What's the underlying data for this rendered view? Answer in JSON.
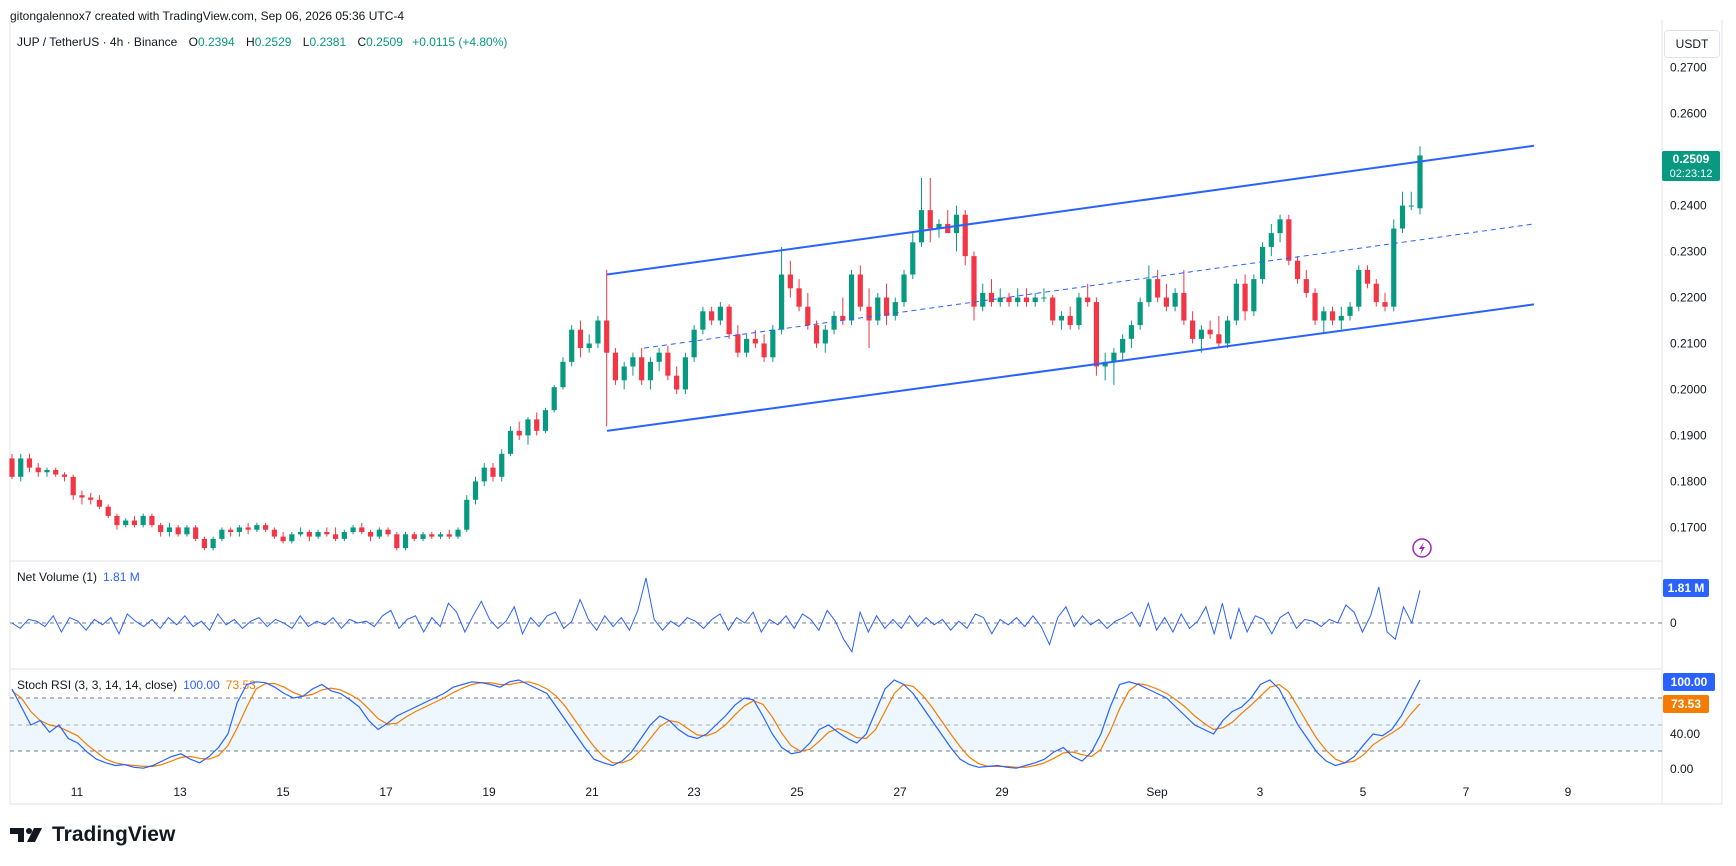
{
  "header": {
    "title": "gitongalennox7 created with TradingView.com, Sep 06, 2026 05:36 UTC-4"
  },
  "symbol": {
    "name": "JUP / TetherUS · 4h · Binance",
    "open_label": "O",
    "open": "0.2394",
    "high_label": "H",
    "high": "0.2529",
    "low_label": "L",
    "low": "0.2381",
    "close_label": "C",
    "close": "0.2509",
    "change": "+0.0115 (+4.80%)"
  },
  "currency": "USDT",
  "price_axis": {
    "ticks": [
      "0.2700",
      "0.2600",
      "0.2500",
      "0.2400",
      "0.2300",
      "0.2200",
      "0.2100",
      "0.2000",
      "0.1900",
      "0.1800",
      "0.1700"
    ],
    "current_price": "0.2509",
    "countdown": "02:23:12"
  },
  "time_axis": {
    "ticks": [
      "11",
      "13",
      "15",
      "17",
      "19",
      "21",
      "23",
      "25",
      "27",
      "29",
      "Sep",
      "3",
      "5",
      "7",
      "9"
    ]
  },
  "net_volume": {
    "label": "Net Volume (1)",
    "value": "1.81 M",
    "axis_value": "1.81 M",
    "zero_label": "0"
  },
  "stoch_rsi": {
    "label": "Stoch RSI (3, 3, 14, 14, close)",
    "k_value": "100.00",
    "d_value": "73.53",
    "axis_k": "100.00",
    "axis_d": "73.53",
    "ticks": [
      "40.00",
      "0.00"
    ]
  },
  "footer": {
    "brand": "TradingView"
  },
  "colors": {
    "up": "#089981",
    "down": "#f23645",
    "channel": "#2962ff",
    "volume_line": "#2962ff",
    "k_line": "#2962ff",
    "d_line": "#f57c00",
    "band_fill": "#e3f2fd"
  },
  "chart_data": {
    "type": "candlestick",
    "ylim": [
      0.164,
      0.276
    ],
    "interval": "4h",
    "ohlc_note": "approximate reading of candles",
    "candles": [
      [
        0.185,
        0.186,
        0.1805,
        0.181
      ],
      [
        0.181,
        0.186,
        0.18,
        0.185
      ],
      [
        0.185,
        0.186,
        0.182,
        0.183
      ],
      [
        0.183,
        0.184,
        0.181,
        0.182
      ],
      [
        0.182,
        0.183,
        0.181,
        0.1825
      ],
      [
        0.1825,
        0.183,
        0.181,
        0.1815
      ],
      [
        0.1815,
        0.182,
        0.18,
        0.181
      ],
      [
        0.181,
        0.1815,
        0.176,
        0.177
      ],
      [
        0.177,
        0.178,
        0.175,
        0.1765
      ],
      [
        0.1765,
        0.1775,
        0.175,
        0.176
      ],
      [
        0.176,
        0.177,
        0.174,
        0.1745
      ],
      [
        0.1745,
        0.175,
        0.172,
        0.1725
      ],
      [
        0.1725,
        0.173,
        0.1695,
        0.1705
      ],
      [
        0.1705,
        0.172,
        0.17,
        0.1715
      ],
      [
        0.1715,
        0.1725,
        0.17,
        0.1705
      ],
      [
        0.1705,
        0.173,
        0.17,
        0.1725
      ],
      [
        0.1725,
        0.173,
        0.17,
        0.1705
      ],
      [
        0.1705,
        0.171,
        0.168,
        0.169
      ],
      [
        0.169,
        0.171,
        0.168,
        0.17
      ],
      [
        0.17,
        0.1705,
        0.168,
        0.1685
      ],
      [
        0.1685,
        0.1705,
        0.168,
        0.17
      ],
      [
        0.17,
        0.1705,
        0.167,
        0.1675
      ],
      [
        0.1675,
        0.168,
        0.165,
        0.1655
      ],
      [
        0.1655,
        0.168,
        0.165,
        0.1675
      ],
      [
        0.1675,
        0.17,
        0.167,
        0.1695
      ],
      [
        0.1695,
        0.17,
        0.168,
        0.169
      ],
      [
        0.169,
        0.1705,
        0.168,
        0.17
      ],
      [
        0.17,
        0.171,
        0.1685,
        0.1695
      ],
      [
        0.1695,
        0.171,
        0.169,
        0.1705
      ],
      [
        0.1705,
        0.171,
        0.169,
        0.1695
      ],
      [
        0.1695,
        0.17,
        0.1675,
        0.168
      ],
      [
        0.168,
        0.169,
        0.1665,
        0.167
      ],
      [
        0.167,
        0.169,
        0.1665,
        0.1685
      ],
      [
        0.1685,
        0.17,
        0.168,
        0.169
      ],
      [
        0.169,
        0.1695,
        0.167,
        0.168
      ],
      [
        0.168,
        0.1695,
        0.1675,
        0.169
      ],
      [
        0.169,
        0.17,
        0.168,
        0.1685
      ],
      [
        0.1685,
        0.17,
        0.167,
        0.1675
      ],
      [
        0.1675,
        0.1695,
        0.167,
        0.169
      ],
      [
        0.169,
        0.1705,
        0.1685,
        0.17
      ],
      [
        0.17,
        0.171,
        0.1685,
        0.169
      ],
      [
        0.169,
        0.1695,
        0.167,
        0.168
      ],
      [
        0.168,
        0.17,
        0.1675,
        0.1695
      ],
      [
        0.1695,
        0.17,
        0.168,
        0.1685
      ],
      [
        0.1685,
        0.169,
        0.165,
        0.1655
      ],
      [
        0.1655,
        0.169,
        0.165,
        0.1685
      ],
      [
        0.1685,
        0.169,
        0.167,
        0.1675
      ],
      [
        0.1675,
        0.169,
        0.167,
        0.1685
      ],
      [
        0.1685,
        0.169,
        0.1675,
        0.168
      ],
      [
        0.168,
        0.169,
        0.1675,
        0.1685
      ],
      [
        0.1685,
        0.1695,
        0.1675,
        0.168
      ],
      [
        0.168,
        0.17,
        0.1675,
        0.1695
      ],
      [
        0.1695,
        0.177,
        0.169,
        0.176
      ],
      [
        0.176,
        0.181,
        0.175,
        0.18
      ],
      [
        0.18,
        0.184,
        0.179,
        0.183
      ],
      [
        0.183,
        0.184,
        0.18,
        0.181
      ],
      [
        0.181,
        0.187,
        0.18,
        0.186
      ],
      [
        0.186,
        0.192,
        0.1855,
        0.191
      ],
      [
        0.191,
        0.193,
        0.189,
        0.19
      ],
      [
        0.19,
        0.194,
        0.188,
        0.1935
      ],
      [
        0.1935,
        0.195,
        0.19,
        0.191
      ],
      [
        0.191,
        0.196,
        0.1905,
        0.1955
      ],
      [
        0.1955,
        0.201,
        0.195,
        0.2005
      ],
      [
        0.2005,
        0.207,
        0.2,
        0.206
      ],
      [
        0.206,
        0.214,
        0.205,
        0.213
      ],
      [
        0.213,
        0.215,
        0.207,
        0.209
      ],
      [
        0.209,
        0.212,
        0.208,
        0.21
      ],
      [
        0.21,
        0.216,
        0.209,
        0.215
      ],
      [
        0.215,
        0.226,
        0.192,
        0.208
      ],
      [
        0.208,
        0.209,
        0.201,
        0.202
      ],
      [
        0.202,
        0.206,
        0.2,
        0.205
      ],
      [
        0.205,
        0.208,
        0.203,
        0.207
      ],
      [
        0.207,
        0.209,
        0.201,
        0.202
      ],
      [
        0.202,
        0.207,
        0.2,
        0.206
      ],
      [
        0.206,
        0.209,
        0.204,
        0.208
      ],
      [
        0.208,
        0.2095,
        0.202,
        0.203
      ],
      [
        0.203,
        0.205,
        0.199,
        0.2
      ],
      [
        0.2,
        0.208,
        0.199,
        0.207
      ],
      [
        0.207,
        0.214,
        0.206,
        0.213
      ],
      [
        0.213,
        0.218,
        0.212,
        0.217
      ],
      [
        0.217,
        0.218,
        0.214,
        0.215
      ],
      [
        0.215,
        0.219,
        0.214,
        0.218
      ],
      [
        0.218,
        0.2185,
        0.211,
        0.212
      ],
      [
        0.212,
        0.214,
        0.207,
        0.208
      ],
      [
        0.208,
        0.212,
        0.207,
        0.211
      ],
      [
        0.211,
        0.213,
        0.209,
        0.21
      ],
      [
        0.21,
        0.212,
        0.206,
        0.207
      ],
      [
        0.207,
        0.214,
        0.206,
        0.213
      ],
      [
        0.213,
        0.231,
        0.212,
        0.225
      ],
      [
        0.225,
        0.228,
        0.22,
        0.222
      ],
      [
        0.222,
        0.224,
        0.217,
        0.218
      ],
      [
        0.218,
        0.221,
        0.213,
        0.214
      ],
      [
        0.214,
        0.215,
        0.209,
        0.21
      ],
      [
        0.21,
        0.214,
        0.208,
        0.213
      ],
      [
        0.213,
        0.217,
        0.212,
        0.216
      ],
      [
        0.216,
        0.22,
        0.214,
        0.215
      ],
      [
        0.215,
        0.226,
        0.214,
        0.225
      ],
      [
        0.225,
        0.227,
        0.217,
        0.218
      ],
      [
        0.218,
        0.222,
        0.209,
        0.215
      ],
      [
        0.215,
        0.221,
        0.214,
        0.22
      ],
      [
        0.22,
        0.223,
        0.214,
        0.216
      ],
      [
        0.216,
        0.22,
        0.215,
        0.219
      ],
      [
        0.219,
        0.226,
        0.218,
        0.225
      ],
      [
        0.225,
        0.234,
        0.224,
        0.232
      ],
      [
        0.232,
        0.246,
        0.231,
        0.239
      ],
      [
        0.239,
        0.246,
        0.232,
        0.235
      ],
      [
        0.235,
        0.237,
        0.233,
        0.236
      ],
      [
        0.236,
        0.239,
        0.234,
        0.234
      ],
      [
        0.234,
        0.24,
        0.23,
        0.238
      ],
      [
        0.238,
        0.239,
        0.227,
        0.229
      ],
      [
        0.229,
        0.23,
        0.215,
        0.218
      ],
      [
        0.218,
        0.223,
        0.217,
        0.221
      ],
      [
        0.221,
        0.224,
        0.218,
        0.219
      ],
      [
        0.219,
        0.222,
        0.218,
        0.22
      ],
      [
        0.22,
        0.221,
        0.218,
        0.219
      ],
      [
        0.219,
        0.222,
        0.218,
        0.22
      ],
      [
        0.22,
        0.222,
        0.218,
        0.219
      ],
      [
        0.219,
        0.221,
        0.218,
        0.22
      ],
      [
        0.22,
        0.222,
        0.219,
        0.22
      ],
      [
        0.22,
        0.2205,
        0.214,
        0.215
      ],
      [
        0.215,
        0.217,
        0.213,
        0.216
      ],
      [
        0.216,
        0.218,
        0.213,
        0.214
      ],
      [
        0.214,
        0.221,
        0.213,
        0.22
      ],
      [
        0.22,
        0.223,
        0.218,
        0.219
      ],
      [
        0.219,
        0.22,
        0.203,
        0.205
      ],
      [
        0.205,
        0.208,
        0.202,
        0.206
      ],
      [
        0.206,
        0.209,
        0.201,
        0.208
      ],
      [
        0.208,
        0.212,
        0.206,
        0.211
      ],
      [
        0.211,
        0.215,
        0.209,
        0.214
      ],
      [
        0.214,
        0.22,
        0.213,
        0.219
      ],
      [
        0.219,
        0.227,
        0.218,
        0.224
      ],
      [
        0.224,
        0.226,
        0.219,
        0.22
      ],
      [
        0.22,
        0.223,
        0.217,
        0.218
      ],
      [
        0.218,
        0.222,
        0.217,
        0.221
      ],
      [
        0.221,
        0.226,
        0.214,
        0.215
      ],
      [
        0.215,
        0.217,
        0.21,
        0.211
      ],
      [
        0.211,
        0.214,
        0.208,
        0.213
      ],
      [
        0.213,
        0.215,
        0.211,
        0.212
      ],
      [
        0.212,
        0.216,
        0.209,
        0.21
      ],
      [
        0.21,
        0.216,
        0.209,
        0.215
      ],
      [
        0.215,
        0.224,
        0.214,
        0.223
      ],
      [
        0.223,
        0.225,
        0.215,
        0.217
      ],
      [
        0.217,
        0.225,
        0.216,
        0.224
      ],
      [
        0.224,
        0.232,
        0.223,
        0.231
      ],
      [
        0.231,
        0.236,
        0.229,
        0.234
      ],
      [
        0.234,
        0.238,
        0.232,
        0.237
      ],
      [
        0.237,
        0.238,
        0.227,
        0.228
      ],
      [
        0.228,
        0.229,
        0.223,
        0.224
      ],
      [
        0.224,
        0.226,
        0.22,
        0.221
      ],
      [
        0.221,
        0.222,
        0.214,
        0.215
      ],
      [
        0.215,
        0.218,
        0.212,
        0.217
      ],
      [
        0.217,
        0.218,
        0.214,
        0.215
      ],
      [
        0.215,
        0.218,
        0.213,
        0.216
      ],
      [
        0.216,
        0.219,
        0.215,
        0.218
      ],
      [
        0.218,
        0.227,
        0.217,
        0.226
      ],
      [
        0.226,
        0.227,
        0.222,
        0.223
      ],
      [
        0.223,
        0.224,
        0.218,
        0.219
      ],
      [
        0.219,
        0.221,
        0.217,
        0.218
      ],
      [
        0.218,
        0.237,
        0.217,
        0.235
      ],
      [
        0.235,
        0.243,
        0.234,
        0.24
      ],
      [
        0.24,
        0.243,
        0.239,
        0.24
      ],
      [
        0.2394,
        0.2529,
        0.2381,
        0.2509
      ]
    ],
    "channel": {
      "upper": [
        [
          0.225,
          0
        ],
        [
          0.253,
          1
        ]
      ],
      "lower": [
        [
          0.191,
          0
        ],
        [
          0.2185,
          1
        ]
      ],
      "mid": [
        [
          0.209,
          0.04
        ],
        [
          0.236,
          1
        ]
      ]
    },
    "net_volume": [
      0.0,
      -0.3,
      0.2,
      0.1,
      -0.2,
      0.4,
      -0.5,
      0.3,
      0.1,
      -0.4,
      0.2,
      -0.1,
      0.3,
      -0.6,
      0.5,
      0.1,
      -0.2,
      0.2,
      -0.3,
      0.3,
      -0.1,
      0.4,
      -0.2,
      0.1,
      -0.4,
      0.5,
      -0.1,
      0.2,
      -0.3,
      0.1,
      0.3,
      -0.2,
      0.2,
      0.0,
      -0.3,
      0.4,
      -0.2,
      0.1,
      -0.1,
      0.3,
      -0.3,
      0.2,
      0.0,
      0.1,
      -0.2,
      0.4,
      0.7,
      -0.3,
      0.2,
      0.4,
      -0.5,
      0.3,
      -0.2,
      1.1,
      0.6,
      -0.5,
      0.4,
      1.2,
      0.2,
      -0.3,
      0.1,
      0.9,
      -0.6,
      0.3,
      -0.2,
      0.4,
      0.6,
      -0.3,
      0.1,
      1.3,
      0.2,
      -0.4,
      0.4,
      -0.2,
      0.3,
      -0.4,
      0.7,
      2.5,
      0.2,
      -0.4,
      0.1,
      -0.2,
      0.3,
      0.1,
      -0.3,
      0.2,
      0.5,
      -0.4,
      0.3,
      0.0,
      0.6,
      -0.5,
      0.2,
      -0.1,
      0.4,
      -0.3,
      0.5,
      0.2,
      -0.4,
      0.7,
      0.1,
      -0.9,
      -1.6,
      0.6,
      -0.5,
      0.4,
      -0.3,
      0.2,
      -0.3,
      0.4,
      -0.2,
      0.3,
      -0.1,
      0.2,
      -0.4,
      0.1,
      -0.3,
      0.5,
      0.3,
      -0.6,
      0.2,
      -0.1,
      0.3,
      -0.2,
      0.4,
      -0.2,
      -1.2,
      0.3,
      0.9,
      -0.2,
      0.4,
      -0.1,
      0.2,
      -0.3,
      0.1,
      0.3,
      0.6,
      -0.2,
      1.1,
      -0.4,
      0.3,
      -0.5,
      0.5,
      -0.3,
      0.1,
      0.9,
      -0.6,
      1.1,
      -0.9,
      0.8,
      -0.5,
      0.4,
      0.2,
      -0.6,
      0.3,
      0.6,
      -0.3,
      0.2,
      0.1,
      -0.2,
      0.2,
      0.0,
      1.0,
      0.6,
      -0.5,
      0.4,
      2.0,
      -0.5,
      -0.9,
      0.9,
      0.0,
      1.81
    ],
    "stoch_k": [
      90,
      70,
      50,
      55,
      42,
      50,
      35,
      30,
      20,
      12,
      8,
      5,
      6,
      3,
      2,
      5,
      10,
      15,
      18,
      12,
      8,
      15,
      25,
      40,
      75,
      95,
      98,
      97,
      92,
      85,
      80,
      82,
      90,
      95,
      88,
      85,
      78,
      70,
      55,
      45,
      52,
      60,
      65,
      70,
      75,
      80,
      85,
      92,
      95,
      98,
      97,
      95,
      92,
      98,
      100,
      95,
      90,
      85,
      70,
      55,
      40,
      25,
      12,
      8,
      5,
      10,
      20,
      35,
      50,
      60,
      55,
      45,
      38,
      35,
      40,
      50,
      60,
      72,
      80,
      78,
      60,
      40,
      25,
      18,
      20,
      30,
      45,
      50,
      42,
      35,
      30,
      40,
      65,
      90,
      100,
      95,
      85,
      70,
      55,
      40,
      25,
      12,
      6,
      3,
      4,
      5,
      3,
      2,
      5,
      8,
      12,
      20,
      25,
      15,
      10,
      20,
      40,
      70,
      95,
      98,
      95,
      90,
      85,
      80,
      70,
      60,
      50,
      45,
      40,
      55,
      65,
      70,
      80,
      95,
      100,
      90,
      70,
      50,
      35,
      20,
      10,
      5,
      8,
      15,
      28,
      40,
      38,
      45,
      60,
      80,
      100
    ],
    "stoch_d": [
      88,
      80,
      65,
      55,
      50,
      48,
      43,
      38,
      28,
      20,
      12,
      8,
      6,
      5,
      4,
      4,
      6,
      10,
      14,
      15,
      13,
      12,
      16,
      27,
      47,
      70,
      90,
      96,
      96,
      92,
      86,
      82,
      84,
      89,
      91,
      89,
      84,
      78,
      68,
      57,
      51,
      52,
      59,
      65,
      70,
      75,
      80,
      86,
      91,
      95,
      97,
      97,
      95,
      95,
      97,
      98,
      95,
      90,
      82,
      70,
      55,
      40,
      26,
      15,
      8,
      8,
      12,
      22,
      35,
      48,
      55,
      53,
      46,
      39,
      38,
      42,
      50,
      61,
      71,
      77,
      73,
      59,
      41,
      27,
      21,
      23,
      32,
      42,
      46,
      42,
      36,
      35,
      45,
      65,
      85,
      95,
      93,
      83,
      70,
      55,
      40,
      26,
      14,
      7,
      4,
      4,
      4,
      3,
      3,
      5,
      8,
      13,
      19,
      20,
      17,
      15,
      23,
      43,
      68,
      88,
      96,
      94,
      90,
      85,
      78,
      70,
      60,
      52,
      45,
      47,
      53,
      63,
      72,
      82,
      92,
      95,
      87,
      70,
      52,
      35,
      22,
      12,
      8,
      10,
      17,
      28,
      35,
      41,
      48,
      62,
      73.53
    ]
  }
}
